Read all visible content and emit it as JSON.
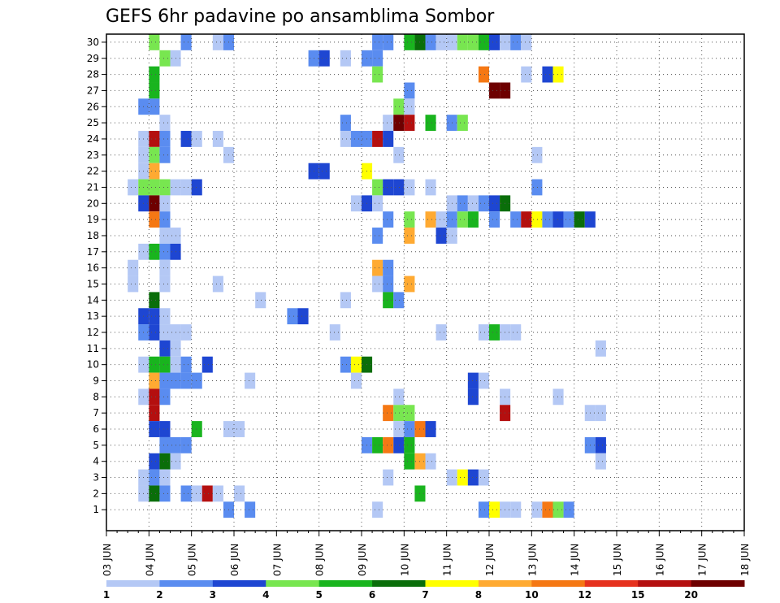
{
  "chart_data": {
    "type": "heatmap",
    "title": "GEFS 6hr padavine po ansamblima Sombor",
    "xlabel": "",
    "ylabel": "",
    "x_tick_labels": [
      "03 JUN",
      "04 JUN",
      "05 JUN",
      "06 JUN",
      "07 JUN",
      "08 JUN",
      "09 JUN",
      "10 JUN",
      "11 JUN",
      "12 JUN",
      "13 JUN",
      "14 JUN",
      "15 JUN",
      "16 JUN",
      "17 JUN",
      "18 JUN"
    ],
    "y_tick_labels": [
      "1",
      "2",
      "3",
      "4",
      "5",
      "6",
      "7",
      "8",
      "9",
      "10",
      "11",
      "12",
      "13",
      "14",
      "15",
      "16",
      "17",
      "18",
      "19",
      "20",
      "21",
      "22",
      "23",
      "24",
      "25",
      "26",
      "27",
      "28",
      "29",
      "30"
    ],
    "x_slots": 61,
    "y_members": 30,
    "grid": true,
    "legend_placement": "bottom",
    "legend": {
      "labels": [
        "1",
        "2",
        "3",
        "4",
        "5",
        "6",
        "7",
        "8",
        "10",
        "12",
        "15",
        "20"
      ],
      "colors": [
        "#b4c8f5",
        "#5a8cf0",
        "#1e46d2",
        "#78e650",
        "#19b41e",
        "#0a6e0a",
        "#ffff00",
        "#ffaa32",
        "#f57814",
        "#e6321e",
        "#b40f0f",
        "#6e0000"
      ]
    },
    "cells": [
      [
        2,
        30,
        4
      ],
      [
        5,
        30,
        2
      ],
      [
        8,
        30,
        1
      ],
      [
        9,
        30,
        2
      ],
      [
        23,
        30,
        2
      ],
      [
        24,
        30,
        2
      ],
      [
        26,
        30,
        5
      ],
      [
        27,
        30,
        6
      ],
      [
        28,
        30,
        2
      ],
      [
        29,
        30,
        1
      ],
      [
        30,
        30,
        1
      ],
      [
        31,
        30,
        4
      ],
      [
        32,
        30,
        4
      ],
      [
        33,
        30,
        5
      ],
      [
        34,
        30,
        3
      ],
      [
        35,
        30,
        1
      ],
      [
        36,
        30,
        2
      ],
      [
        37,
        30,
        1
      ],
      [
        3,
        29,
        4
      ],
      [
        4,
        29,
        1
      ],
      [
        17,
        29,
        2
      ],
      [
        18,
        29,
        3
      ],
      [
        20,
        29,
        1
      ],
      [
        22,
        29,
        2
      ],
      [
        23,
        29,
        2
      ],
      [
        2,
        28,
        5
      ],
      [
        23,
        28,
        4
      ],
      [
        33,
        28,
        10
      ],
      [
        37,
        28,
        1
      ],
      [
        39,
        28,
        3
      ],
      [
        40,
        28,
        7
      ],
      [
        2,
        27,
        5
      ],
      [
        26,
        27,
        2
      ],
      [
        34,
        27,
        20
      ],
      [
        35,
        27,
        20
      ],
      [
        1,
        26,
        2
      ],
      [
        2,
        26,
        2
      ],
      [
        25,
        26,
        4
      ],
      [
        26,
        26,
        1
      ],
      [
        3,
        25,
        1
      ],
      [
        20,
        25,
        2
      ],
      [
        24,
        25,
        1
      ],
      [
        25,
        25,
        20
      ],
      [
        26,
        25,
        15
      ],
      [
        28,
        25,
        5
      ],
      [
        30,
        25,
        2
      ],
      [
        31,
        25,
        4
      ],
      [
        1,
        24,
        1
      ],
      [
        2,
        24,
        15
      ],
      [
        3,
        24,
        2
      ],
      [
        5,
        24,
        3
      ],
      [
        6,
        24,
        1
      ],
      [
        8,
        24,
        1
      ],
      [
        20,
        24,
        1
      ],
      [
        21,
        24,
        2
      ],
      [
        22,
        24,
        2
      ],
      [
        23,
        24,
        15
      ],
      [
        24,
        24,
        3
      ],
      [
        1,
        23,
        1
      ],
      [
        2,
        23,
        4
      ],
      [
        3,
        23,
        2
      ],
      [
        9,
        23,
        1
      ],
      [
        25,
        23,
        1
      ],
      [
        38,
        23,
        1
      ],
      [
        1,
        22,
        1
      ],
      [
        2,
        22,
        8
      ],
      [
        17,
        22,
        3
      ],
      [
        18,
        22,
        3
      ],
      [
        22,
        22,
        7
      ],
      [
        0,
        21,
        1
      ],
      [
        1,
        21,
        4
      ],
      [
        2,
        21,
        4
      ],
      [
        3,
        21,
        4
      ],
      [
        4,
        21,
        1
      ],
      [
        5,
        21,
        1
      ],
      [
        6,
        21,
        3
      ],
      [
        23,
        21,
        4
      ],
      [
        24,
        21,
        3
      ],
      [
        25,
        21,
        3
      ],
      [
        26,
        21,
        1
      ],
      [
        28,
        21,
        1
      ],
      [
        38,
        21,
        2
      ],
      [
        1,
        20,
        3
      ],
      [
        2,
        20,
        20
      ],
      [
        3,
        20,
        1
      ],
      [
        21,
        20,
        1
      ],
      [
        22,
        20,
        3
      ],
      [
        23,
        20,
        1
      ],
      [
        30,
        20,
        1
      ],
      [
        31,
        20,
        2
      ],
      [
        32,
        20,
        1
      ],
      [
        33,
        20,
        2
      ],
      [
        34,
        20,
        3
      ],
      [
        35,
        20,
        6
      ],
      [
        2,
        19,
        10
      ],
      [
        3,
        19,
        2
      ],
      [
        24,
        19,
        2
      ],
      [
        26,
        19,
        4
      ],
      [
        28,
        19,
        8
      ],
      [
        29,
        19,
        1
      ],
      [
        30,
        19,
        2
      ],
      [
        31,
        19,
        4
      ],
      [
        32,
        19,
        5
      ],
      [
        34,
        19,
        2
      ],
      [
        36,
        19,
        2
      ],
      [
        37,
        19,
        15
      ],
      [
        38,
        19,
        7
      ],
      [
        39,
        19,
        2
      ],
      [
        40,
        19,
        3
      ],
      [
        41,
        19,
        2
      ],
      [
        42,
        19,
        6
      ],
      [
        43,
        19,
        3
      ],
      [
        3,
        18,
        1
      ],
      [
        4,
        18,
        1
      ],
      [
        23,
        18,
        2
      ],
      [
        26,
        18,
        8
      ],
      [
        29,
        18,
        3
      ],
      [
        30,
        18,
        1
      ],
      [
        1,
        17,
        1
      ],
      [
        2,
        17,
        5
      ],
      [
        3,
        17,
        2
      ],
      [
        4,
        17,
        3
      ],
      [
        0,
        16,
        1
      ],
      [
        3,
        16,
        1
      ],
      [
        23,
        16,
        8
      ],
      [
        24,
        16,
        2
      ],
      [
        0,
        15,
        1
      ],
      [
        3,
        15,
        1
      ],
      [
        8,
        15,
        1
      ],
      [
        23,
        15,
        1
      ],
      [
        24,
        15,
        2
      ],
      [
        26,
        15,
        8
      ],
      [
        2,
        14,
        6
      ],
      [
        12,
        14,
        1
      ],
      [
        20,
        14,
        1
      ],
      [
        24,
        14,
        5
      ],
      [
        25,
        14,
        2
      ],
      [
        1,
        13,
        3
      ],
      [
        2,
        13,
        3
      ],
      [
        3,
        13,
        1
      ],
      [
        15,
        13,
        2
      ],
      [
        16,
        13,
        3
      ],
      [
        1,
        12,
        2
      ],
      [
        2,
        12,
        3
      ],
      [
        3,
        12,
        1
      ],
      [
        4,
        12,
        1
      ],
      [
        5,
        12,
        1
      ],
      [
        19,
        12,
        1
      ],
      [
        29,
        12,
        1
      ],
      [
        33,
        12,
        1
      ],
      [
        34,
        12,
        5
      ],
      [
        35,
        12,
        1
      ],
      [
        36,
        12,
        1
      ],
      [
        3,
        11,
        3
      ],
      [
        4,
        11,
        1
      ],
      [
        44,
        11,
        1
      ],
      [
        1,
        10,
        1
      ],
      [
        2,
        10,
        5
      ],
      [
        3,
        10,
        5
      ],
      [
        4,
        10,
        1
      ],
      [
        5,
        10,
        2
      ],
      [
        7,
        10,
        3
      ],
      [
        20,
        10,
        2
      ],
      [
        21,
        10,
        7
      ],
      [
        22,
        10,
        6
      ],
      [
        2,
        9,
        8
      ],
      [
        3,
        9,
        2
      ],
      [
        4,
        9,
        2
      ],
      [
        5,
        9,
        2
      ],
      [
        6,
        9,
        2
      ],
      [
        11,
        9,
        1
      ],
      [
        21,
        9,
        1
      ],
      [
        32,
        9,
        3
      ],
      [
        33,
        9,
        1
      ],
      [
        1,
        8,
        1
      ],
      [
        2,
        8,
        15
      ],
      [
        3,
        8,
        2
      ],
      [
        25,
        8,
        1
      ],
      [
        32,
        8,
        3
      ],
      [
        35,
        8,
        1
      ],
      [
        40,
        8,
        1
      ],
      [
        2,
        7,
        15
      ],
      [
        24,
        7,
        10
      ],
      [
        25,
        7,
        4
      ],
      [
        26,
        7,
        4
      ],
      [
        35,
        7,
        15
      ],
      [
        43,
        7,
        1
      ],
      [
        44,
        7,
        1
      ],
      [
        2,
        6,
        3
      ],
      [
        3,
        6,
        3
      ],
      [
        6,
        6,
        5
      ],
      [
        9,
        6,
        1
      ],
      [
        10,
        6,
        1
      ],
      [
        25,
        6,
        1
      ],
      [
        26,
        6,
        2
      ],
      [
        27,
        6,
        10
      ],
      [
        28,
        6,
        3
      ],
      [
        3,
        5,
        2
      ],
      [
        4,
        5,
        2
      ],
      [
        5,
        5,
        2
      ],
      [
        22,
        5,
        2
      ],
      [
        23,
        5,
        5
      ],
      [
        24,
        5,
        10
      ],
      [
        25,
        5,
        3
      ],
      [
        26,
        5,
        5
      ],
      [
        43,
        5,
        2
      ],
      [
        44,
        5,
        3
      ],
      [
        2,
        4,
        3
      ],
      [
        3,
        4,
        6
      ],
      [
        4,
        4,
        1
      ],
      [
        26,
        4,
        5
      ],
      [
        27,
        4,
        8
      ],
      [
        28,
        4,
        1
      ],
      [
        44,
        4,
        1
      ],
      [
        1,
        3,
        1
      ],
      [
        2,
        3,
        2
      ],
      [
        3,
        3,
        1
      ],
      [
        24,
        3,
        1
      ],
      [
        30,
        3,
        1
      ],
      [
        31,
        3,
        7
      ],
      [
        32,
        3,
        3
      ],
      [
        33,
        3,
        1
      ],
      [
        1,
        2,
        1
      ],
      [
        2,
        2,
        6
      ],
      [
        3,
        2,
        2
      ],
      [
        5,
        2,
        2
      ],
      [
        6,
        2,
        1
      ],
      [
        7,
        2,
        15
      ],
      [
        8,
        2,
        1
      ],
      [
        10,
        2,
        1
      ],
      [
        27,
        2,
        5
      ],
      [
        9,
        1,
        2
      ],
      [
        11,
        1,
        2
      ],
      [
        23,
        1,
        1
      ],
      [
        33,
        1,
        2
      ],
      [
        34,
        1,
        7
      ],
      [
        35,
        1,
        1
      ],
      [
        36,
        1,
        1
      ],
      [
        38,
        1,
        1
      ],
      [
        39,
        1,
        10
      ],
      [
        40,
        1,
        4
      ],
      [
        41,
        1,
        2
      ]
    ]
  }
}
